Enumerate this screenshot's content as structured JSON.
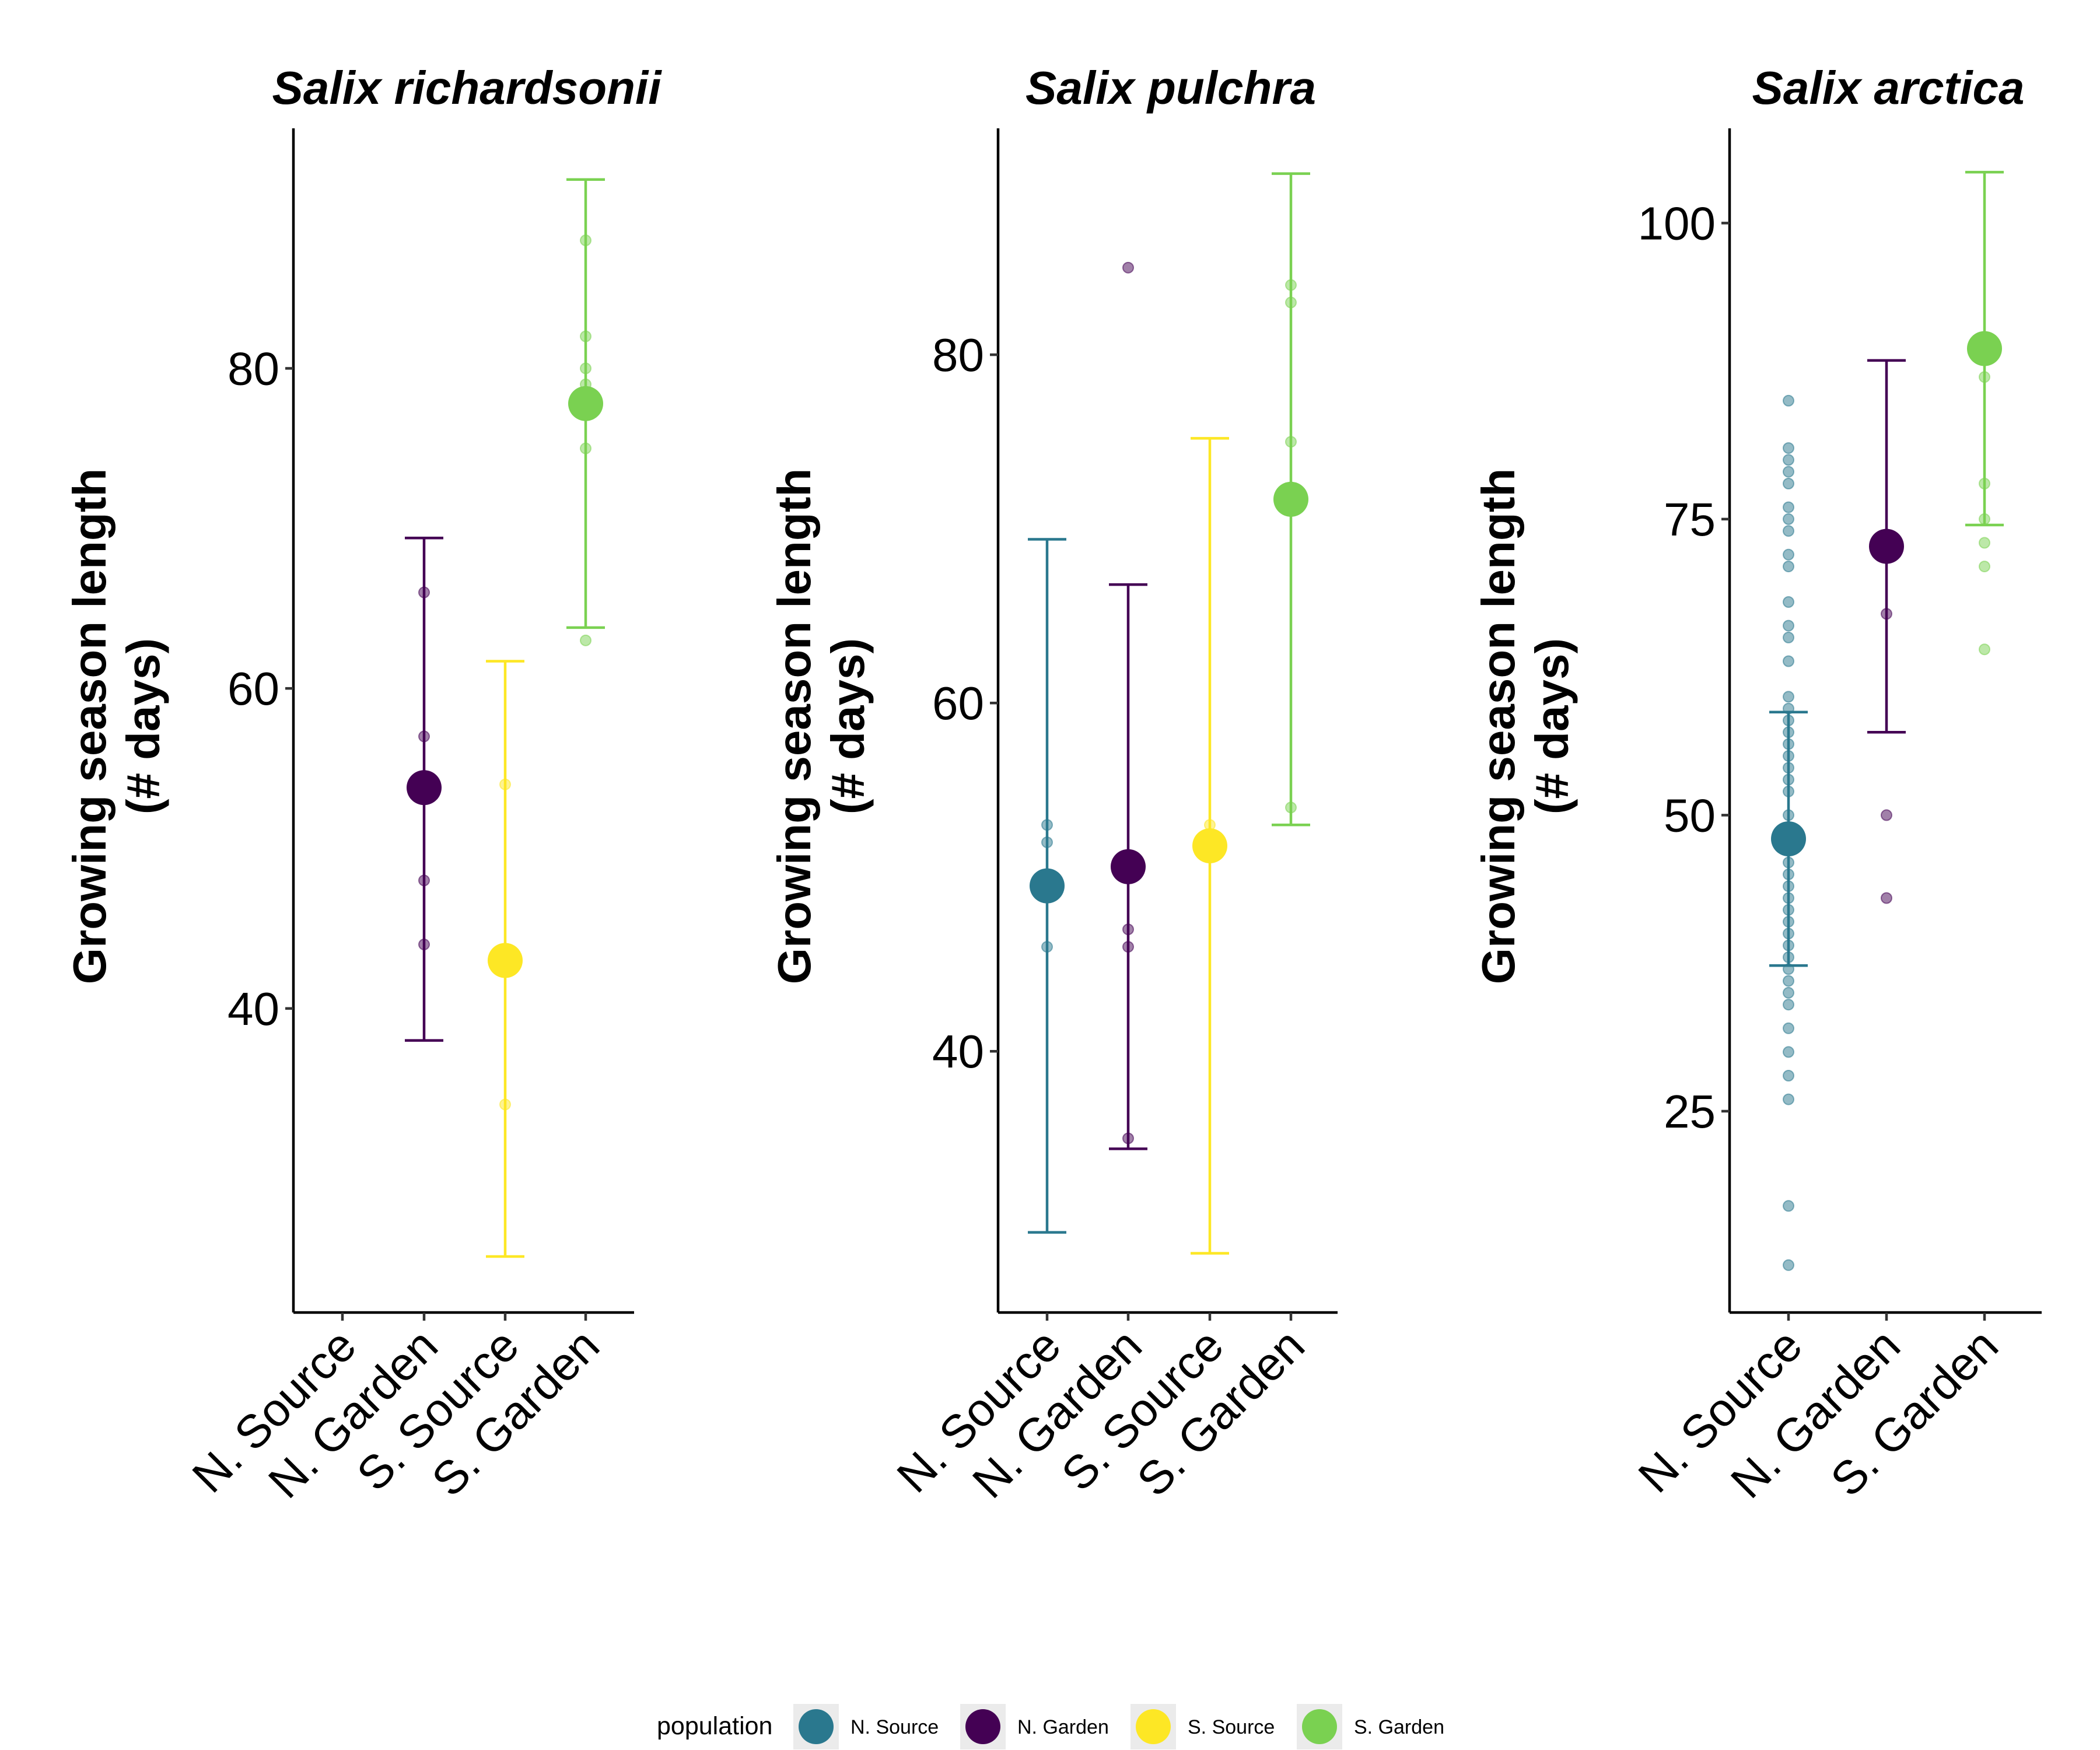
{
  "chart_data": [
    {
      "type": "scatter",
      "title": "Salix richardsonii",
      "ylabel_lines": [
        "Growing season length",
        "(# days)"
      ],
      "categories": [
        "N. Source",
        "N. Garden",
        "S. Source",
        "S. Garden"
      ],
      "ylim": [
        21,
        95
      ],
      "yticks": [
        40,
        60,
        80
      ],
      "series": [
        {
          "name": "N. Source",
          "category": "N. Source",
          "points": [],
          "mean": null,
          "err": null
        },
        {
          "name": "N. Garden",
          "category": "N. Garden",
          "points": [
            66,
            57,
            48,
            44
          ],
          "mean": 53.8,
          "err": [
            38,
            69.4
          ]
        },
        {
          "name": "S. Source",
          "category": "S. Source",
          "points": [
            54,
            34
          ],
          "mean": 43,
          "err": [
            24.5,
            61.7
          ]
        },
        {
          "name": "S. Garden",
          "category": "S. Garden",
          "points": [
            88,
            82,
            80,
            79,
            75,
            63
          ],
          "mean": 77.8,
          "err": [
            63.8,
            91.8
          ]
        }
      ]
    },
    {
      "type": "scatter",
      "title": "Salix pulchra",
      "ylabel_lines": [
        "Growing season length",
        "(# days)"
      ],
      "categories": [
        "N. Source",
        "N. Garden",
        "S. Source",
        "S. Garden"
      ],
      "ylim": [
        25,
        93
      ],
      "yticks": [
        40,
        60,
        80
      ],
      "series": [
        {
          "name": "N. Source",
          "category": "N. Source",
          "points": [
            53,
            52,
            46
          ],
          "mean": 49.5,
          "err": [
            29.6,
            69.4
          ]
        },
        {
          "name": "N. Garden",
          "category": "N. Garden",
          "points": [
            85,
            47,
            46,
            35
          ],
          "mean": 50.6,
          "err": [
            34.4,
            66.8
          ]
        },
        {
          "name": "S. Source",
          "category": "S. Source",
          "points": [
            53
          ],
          "mean": 51.8,
          "err": [
            28.4,
            75.2
          ]
        },
        {
          "name": "S. Garden",
          "category": "S. Garden",
          "points": [
            84,
            83,
            75,
            54
          ],
          "mean": 71.7,
          "err": [
            53,
            90.4
          ]
        }
      ]
    },
    {
      "type": "scatter",
      "title": "Salix arctica",
      "ylabel_lines": [
        "Growing season length",
        "(# days)"
      ],
      "categories": [
        "N. Source",
        "N. Garden",
        "S. Garden"
      ],
      "ylim": [
        8,
        108
      ],
      "yticks": [
        25,
        50,
        75,
        100
      ],
      "series": [
        {
          "name": "N. Source",
          "category": "N. Source",
          "points": [
            85,
            81,
            80,
            79,
            78,
            76,
            75,
            74,
            72,
            71,
            68,
            66,
            65,
            63,
            60,
            59,
            58,
            57,
            56,
            55,
            54,
            53,
            52,
            50,
            48,
            47,
            46,
            45,
            44,
            43,
            42,
            41,
            40,
            39,
            38,
            37,
            36,
            35,
            34,
            32,
            30,
            28,
            26,
            17,
            12
          ],
          "mean": 48,
          "err": [
            37.3,
            58.7
          ]
        },
        {
          "name": "N. Garden",
          "category": "N. Garden",
          "points": [
            67,
            50,
            43
          ],
          "mean": 72.7,
          "err": [
            57,
            88.4
          ]
        },
        {
          "name": "S. Garden",
          "category": "S. Garden",
          "points": [
            87,
            78,
            75,
            73,
            71,
            64
          ],
          "mean": 89.4,
          "err": [
            74.5,
            104.3
          ]
        }
      ]
    }
  ],
  "legend": {
    "title": "population",
    "items": [
      {
        "label": "N. Source",
        "color": "#2A788E"
      },
      {
        "label": "N. Garden",
        "color": "#440154"
      },
      {
        "label": "S. Source",
        "color": "#FDE725"
      },
      {
        "label": "S. Garden",
        "color": "#7AD151"
      }
    ]
  }
}
